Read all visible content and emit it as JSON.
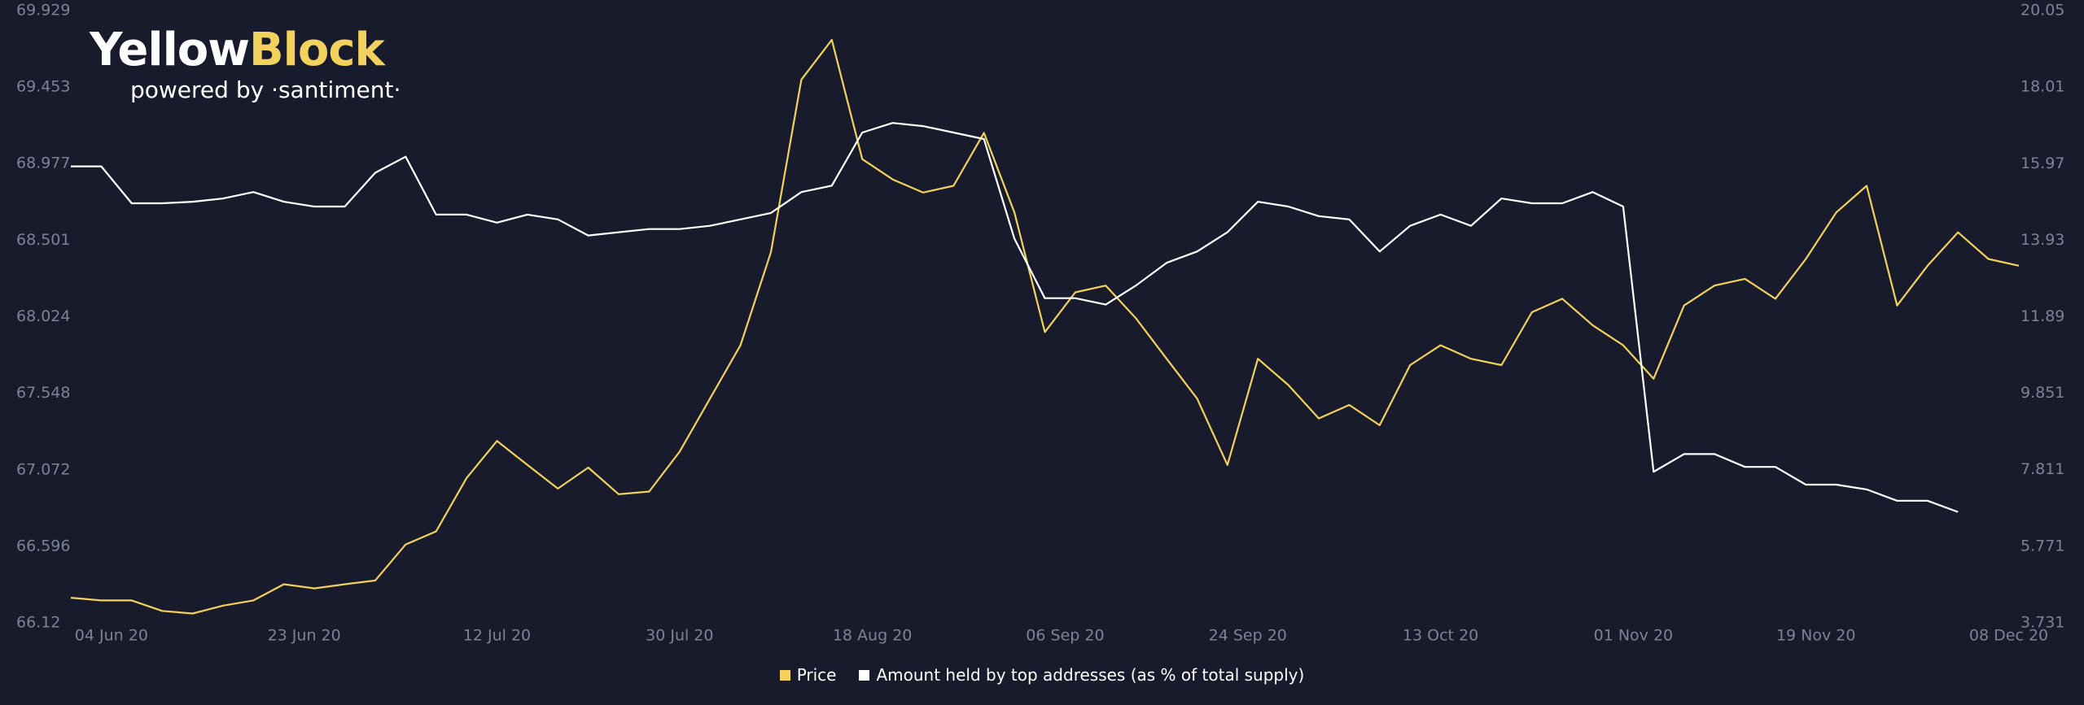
{
  "logo": {
    "name": "Yellow",
    "accent": "Block",
    "tagline": "powered by ·santiment·"
  },
  "chart_data": {
    "type": "line",
    "x": [
      "2020-05-31",
      "2020-06-03",
      "2020-06-06",
      "2020-06-09",
      "2020-06-12",
      "2020-06-15",
      "2020-06-18",
      "2020-06-21",
      "2020-06-24",
      "2020-06-27",
      "2020-06-30",
      "2020-07-03",
      "2020-07-06",
      "2020-07-09",
      "2020-07-12",
      "2020-07-15",
      "2020-07-18",
      "2020-07-21",
      "2020-07-24",
      "2020-07-27",
      "2020-07-30",
      "2020-08-02",
      "2020-08-05",
      "2020-08-08",
      "2020-08-11",
      "2020-08-14",
      "2020-08-17",
      "2020-08-20",
      "2020-08-23",
      "2020-08-26",
      "2020-08-29",
      "2020-09-01",
      "2020-09-04",
      "2020-09-07",
      "2020-09-10",
      "2020-09-13",
      "2020-09-16",
      "2020-09-19",
      "2020-09-22",
      "2020-09-25",
      "2020-09-28",
      "2020-10-01",
      "2020-10-04",
      "2020-10-07",
      "2020-10-10",
      "2020-10-13",
      "2020-10-16",
      "2020-10-19",
      "2020-10-22",
      "2020-10-25",
      "2020-10-28",
      "2020-10-31",
      "2020-11-03",
      "2020-11-06",
      "2020-11-09",
      "2020-11-12",
      "2020-11-15",
      "2020-11-18",
      "2020-11-21",
      "2020-11-24",
      "2020-11-27",
      "2020-11-30",
      "2020-12-03",
      "2020-12-06",
      "2020-12-09"
    ],
    "series": [
      {
        "name": "Price",
        "color": "#f2d15c",
        "axis": "y2",
        "values": [
          4.4,
          4.33,
          4.33,
          4.05,
          3.98,
          4.19,
          4.33,
          4.76,
          4.65,
          4.76,
          4.86,
          5.82,
          6.17,
          7.59,
          8.58,
          7.94,
          7.31,
          7.87,
          7.16,
          7.23,
          8.29,
          9.71,
          11.13,
          13.61,
          18.21,
          19.27,
          16.09,
          15.55,
          15.2,
          15.38,
          16.79,
          14.67,
          11.48,
          12.54,
          12.72,
          11.84,
          10.77,
          9.71,
          7.94,
          10.77,
          10.07,
          9.18,
          9.54,
          9.0,
          10.6,
          11.13,
          10.77,
          10.6,
          12.01,
          12.37,
          11.66,
          11.13,
          10.24,
          12.19,
          12.72,
          12.9,
          12.37,
          13.43,
          14.67,
          15.38,
          12.19,
          13.25,
          14.14,
          13.43,
          13.25
        ]
      },
      {
        "name": "Amount held by top addresses (as % of total supply)",
        "color": "#ffffff",
        "axis": "y",
        "values": [
          68.96,
          68.96,
          68.73,
          68.73,
          68.74,
          68.76,
          68.8,
          68.74,
          68.71,
          68.71,
          68.92,
          69.02,
          68.66,
          68.66,
          68.61,
          68.66,
          68.63,
          68.53,
          68.55,
          68.57,
          68.57,
          68.59,
          68.63,
          68.67,
          68.8,
          68.84,
          69.17,
          69.23,
          69.21,
          69.17,
          69.13,
          68.51,
          68.14,
          68.14,
          68.1,
          68.22,
          68.36,
          68.43,
          68.55,
          68.74,
          68.71,
          68.65,
          68.63,
          68.43,
          68.59,
          68.66,
          68.59,
          68.76,
          68.73,
          68.73,
          68.8,
          68.71,
          67.06,
          67.17,
          67.17,
          67.09,
          67.09,
          66.98,
          66.98,
          66.95,
          66.88,
          66.88,
          66.81,
          null,
          null
        ]
      }
    ],
    "xlim": [
      "2020-05-31",
      "2020-12-09"
    ],
    "xticks": [
      {
        "value": "2020-06-04",
        "label": "04 Jun 20"
      },
      {
        "value": "2020-06-23",
        "label": "23 Jun 20"
      },
      {
        "value": "2020-07-12",
        "label": "12 Jul 20"
      },
      {
        "value": "2020-07-30",
        "label": "30 Jul 20"
      },
      {
        "value": "2020-08-18",
        "label": "18 Aug 20"
      },
      {
        "value": "2020-09-06",
        "label": "06 Sep 20"
      },
      {
        "value": "2020-09-24",
        "label": "24 Sep 20"
      },
      {
        "value": "2020-10-13",
        "label": "13 Oct 20"
      },
      {
        "value": "2020-11-01",
        "label": "01 Nov 20"
      },
      {
        "value": "2020-11-19",
        "label": "19 Nov 20"
      },
      {
        "value": "2020-12-08",
        "label": "08 Dec 20"
      }
    ],
    "ylim": [
      66.12,
      69.929
    ],
    "yticks": [
      66.12,
      66.596,
      67.072,
      67.548,
      68.024,
      68.501,
      68.977,
      69.453,
      69.929
    ],
    "y2lim": [
      3.731,
      20.05
    ],
    "y2ticks": [
      3.731,
      5.771,
      7.811,
      9.851,
      11.89,
      13.93,
      15.97,
      18.01,
      20.05
    ],
    "grid": false
  }
}
